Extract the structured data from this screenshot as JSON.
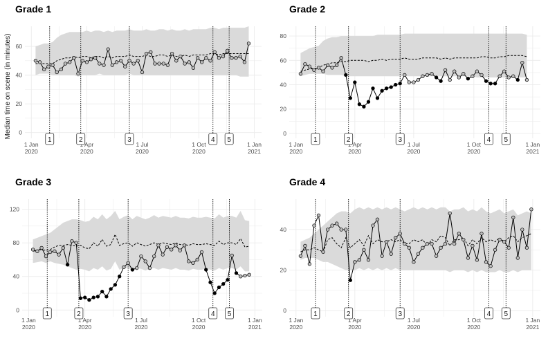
{
  "ylabel": "Median time on scene (in minutes)",
  "colors": {
    "band": "#dadada",
    "grid": "#ebebeb",
    "observed_line": "#000000",
    "expected_line": "#000000",
    "open_point_fill": "#bdbdbd",
    "below_point_fill": "#000000",
    "event_line": "#000000"
  },
  "x_ticks": [
    {
      "week": 0,
      "label_line1": "1 Jan",
      "label_line2": "2020"
    },
    {
      "week": 13,
      "label_line1": "1 Apr",
      "label_line2": "2020"
    },
    {
      "week": 26,
      "label_line1": "1 Jul",
      "label_line2": "2020"
    },
    {
      "week": 39.3,
      "label_line1": "1 Oct",
      "label_line2": "2020"
    },
    {
      "week": 52.3,
      "label_line1": "1 Jan",
      "label_line2": "2021"
    }
  ],
  "events": [
    {
      "label": "1",
      "week": 4.3
    },
    {
      "label": "2",
      "week": 11.6
    },
    {
      "label": "3",
      "week": 23
    },
    {
      "label": "4",
      "week": 42.6
    },
    {
      "label": "5",
      "week": 46.4
    }
  ],
  "chart_data": [
    {
      "type": "line",
      "title": "Grade 1",
      "ylim": [
        -4,
        74
      ],
      "y_ticks": [
        0,
        20,
        40,
        60
      ],
      "x_start": 1,
      "series": [
        {
          "name": "observed",
          "values": [
            50,
            49,
            44,
            46,
            47,
            42,
            44,
            48,
            49,
            52,
            41,
            50,
            49,
            51,
            52,
            48,
            47,
            58,
            47,
            49,
            50,
            46,
            50,
            48,
            50,
            42,
            55,
            56,
            48,
            48,
            48,
            47,
            55,
            50,
            53,
            48,
            49,
            45,
            52,
            49,
            52,
            50,
            56,
            52,
            53,
            57,
            52,
            52,
            53,
            49,
            62
          ]
        },
        {
          "name": "expected",
          "values": [
            48,
            48,
            48,
            48,
            48,
            50,
            51,
            52,
            52,
            53,
            52,
            53,
            53,
            52,
            53,
            53,
            52,
            53,
            52,
            53,
            53,
            53,
            54,
            53,
            53,
            53,
            54,
            53,
            53,
            54,
            54,
            53,
            54,
            53,
            53,
            54,
            53,
            54,
            54,
            54,
            54,
            55,
            55,
            54,
            55,
            55,
            55,
            55,
            55,
            55,
            55
          ]
        },
        {
          "name": "upper",
          "values": [
            60,
            61,
            62,
            62,
            63,
            66,
            68,
            69,
            70,
            70,
            70,
            70,
            71,
            70,
            71,
            71,
            70,
            71,
            70,
            71,
            71,
            71,
            72,
            71,
            71,
            71,
            72,
            71,
            71,
            72,
            72,
            71,
            72,
            71,
            71,
            72,
            71,
            72,
            72,
            72,
            72,
            73,
            73,
            72,
            73,
            73,
            73,
            73,
            73,
            73,
            74
          ]
        },
        {
          "name": "lower",
          "values": [
            40,
            41,
            41,
            41,
            40,
            40,
            40,
            40,
            40,
            40,
            39,
            40,
            40,
            40,
            40,
            41,
            40,
            40,
            40,
            40,
            40,
            40,
            41,
            40,
            40,
            40,
            40,
            40,
            40,
            40,
            40,
            40,
            40,
            40,
            40,
            40,
            40,
            40,
            40,
            40,
            40,
            40,
            40,
            40,
            40,
            40,
            40,
            40,
            39,
            39,
            39
          ]
        }
      ],
      "below_flags": [
        0,
        0,
        0,
        0,
        0,
        0,
        0,
        0,
        0,
        0,
        0,
        0,
        0,
        0,
        0,
        0,
        0,
        0,
        0,
        0,
        0,
        0,
        0,
        0,
        0,
        0,
        0,
        0,
        0,
        0,
        0,
        0,
        0,
        0,
        0,
        0,
        0,
        0,
        0,
        0,
        0,
        0,
        0,
        0,
        0,
        0,
        0,
        0,
        0,
        0,
        0
      ]
    },
    {
      "type": "line",
      "title": "Grade 2",
      "ylim": [
        -4,
        88
      ],
      "y_ticks": [
        0,
        20,
        40,
        60,
        80
      ],
      "x_start": 1,
      "series": [
        {
          "name": "observed",
          "values": [
            49,
            57,
            55,
            52,
            54,
            51,
            56,
            54,
            56,
            62,
            48,
            29,
            42,
            24,
            22,
            26,
            37,
            29,
            35,
            37,
            38,
            40,
            41,
            48,
            42,
            42,
            44,
            47,
            48,
            49,
            46,
            43,
            52,
            44,
            51,
            46,
            49,
            45,
            47,
            51,
            48,
            43,
            41,
            41,
            47,
            51,
            46,
            47,
            44,
            58,
            44
          ]
        },
        {
          "name": "expected",
          "values": [
            51,
            52,
            53,
            53,
            54,
            56,
            57,
            58,
            58,
            59,
            59,
            60,
            60,
            60,
            60,
            59,
            60,
            60,
            61,
            60,
            61,
            61,
            61,
            62,
            61,
            61,
            61,
            62,
            62,
            62,
            62,
            61,
            62,
            61,
            62,
            62,
            62,
            62,
            62,
            62,
            63,
            63,
            62,
            62,
            63,
            63,
            64,
            64,
            64,
            64,
            63
          ]
        },
        {
          "name": "upper",
          "values": [
            66,
            68,
            70,
            71,
            72,
            76,
            78,
            79,
            79,
            80,
            80,
            80,
            80,
            80,
            80,
            80,
            80,
            81,
            81,
            81,
            81,
            81,
            81,
            82,
            82,
            82,
            82,
            82,
            82,
            82,
            82,
            82,
            82,
            82,
            82,
            82,
            82,
            82,
            82,
            82,
            82,
            82,
            82,
            82,
            82,
            82,
            82,
            82,
            82,
            82,
            81
          ]
        },
        {
          "name": "lower",
          "values": [
            47,
            48,
            49,
            49,
            49,
            49,
            48,
            48,
            48,
            48,
            47,
            47,
            47,
            47,
            47,
            47,
            47,
            47,
            47,
            47,
            47,
            47,
            47,
            47,
            47,
            47,
            47,
            47,
            47,
            47,
            47,
            47,
            47,
            47,
            47,
            47,
            47,
            47,
            47,
            46,
            46,
            46,
            46,
            46,
            46,
            46,
            46,
            46,
            46,
            46,
            46
          ]
        }
      ],
      "below_flags": [
        0,
        0,
        0,
        0,
        0,
        0,
        0,
        0,
        0,
        0,
        1,
        1,
        1,
        1,
        1,
        1,
        1,
        1,
        1,
        1,
        1,
        1,
        1,
        0,
        0,
        0,
        0,
        0,
        0,
        0,
        1,
        1,
        0,
        0,
        0,
        0,
        0,
        1,
        0,
        0,
        0,
        1,
        1,
        1,
        0,
        0,
        0,
        0,
        1,
        0,
        0
      ]
    },
    {
      "type": "line",
      "title": "Grade 3",
      "ylim": [
        -8,
        132
      ],
      "y_ticks": [
        0,
        40,
        80,
        120
      ],
      "x_start": 1,
      "series": [
        {
          "name": "observed",
          "values": [
            72,
            70,
            74,
            64,
            69,
            70,
            66,
            74,
            54,
            82,
            80,
            14,
            15,
            12,
            15,
            16,
            22,
            16,
            25,
            30,
            40,
            51,
            56,
            48,
            50,
            64,
            58,
            50,
            64,
            77,
            66,
            75,
            72,
            77,
            71,
            77,
            58,
            56,
            60,
            69,
            48,
            33,
            20,
            27,
            31,
            36,
            65,
            44,
            40,
            41,
            42
          ]
        },
        {
          "name": "expected",
          "values": [
            70,
            71,
            72,
            71,
            72,
            75,
            77,
            77,
            78,
            77,
            76,
            77,
            74,
            73,
            80,
            76,
            84,
            76,
            78,
            90,
            77,
            79,
            80,
            76,
            80,
            78,
            76,
            78,
            80,
            78,
            80,
            79,
            78,
            80,
            78,
            78,
            77,
            79,
            78,
            78,
            79,
            78,
            77,
            82,
            78,
            80,
            80,
            78,
            85,
            75,
            76
          ]
        },
        {
          "name": "upper",
          "values": [
            84,
            86,
            88,
            90,
            92,
            96,
            100,
            104,
            106,
            108,
            108,
            107,
            105,
            106,
            111,
            108,
            114,
            108,
            112,
            118,
            108,
            111,
            113,
            108,
            112,
            110,
            108,
            110,
            113,
            110,
            112,
            111,
            110,
            112,
            110,
            110,
            109,
            111,
            110,
            110,
            111,
            110,
            109,
            114,
            110,
            112,
            112,
            110,
            118,
            107,
            106
          ]
        },
        {
          "name": "lower",
          "values": [
            56,
            57,
            58,
            56,
            58,
            56,
            55,
            54,
            52,
            50,
            48,
            49,
            48,
            46,
            50,
            48,
            52,
            47,
            49,
            58,
            48,
            50,
            50,
            47,
            50,
            49,
            47,
            49,
            50,
            48,
            50,
            49,
            48,
            50,
            48,
            48,
            47,
            49,
            48,
            48,
            49,
            48,
            47,
            50,
            48,
            50,
            50,
            48,
            52,
            46,
            46
          ]
        }
      ],
      "below_flags": [
        0,
        0,
        0,
        0,
        0,
        0,
        0,
        0,
        1,
        0,
        0,
        1,
        1,
        1,
        1,
        1,
        1,
        1,
        1,
        1,
        1,
        0,
        0,
        1,
        0,
        0,
        0,
        0,
        0,
        0,
        0,
        0,
        0,
        0,
        0,
        0,
        0,
        0,
        0,
        0,
        1,
        1,
        1,
        1,
        1,
        1,
        0,
        1,
        0,
        0,
        0
      ]
    },
    {
      "type": "line",
      "title": "Grade 4",
      "ylim": [
        -3,
        55
      ],
      "y_ticks": [
        0,
        20,
        40
      ],
      "x_start": 1,
      "series": [
        {
          "name": "observed",
          "values": [
            27,
            32,
            23,
            42,
            47,
            29,
            40,
            42,
            43,
            40,
            40,
            15,
            24,
            25,
            30,
            25,
            42,
            45,
            27,
            34,
            28,
            36,
            38,
            33,
            31,
            24,
            28,
            31,
            33,
            33,
            27,
            31,
            33,
            48,
            33,
            38,
            35,
            26,
            32,
            25,
            38,
            24,
            22,
            30,
            35,
            34,
            31,
            46,
            26,
            40,
            31,
            50
          ]
        },
        {
          "name": "expected",
          "values": [
            29,
            30,
            30,
            31,
            30,
            29,
            35,
            36,
            33,
            31,
            36,
            31,
            33,
            35,
            32,
            37,
            33,
            35,
            34,
            34,
            35,
            34,
            35,
            33,
            33,
            35,
            34,
            35,
            32,
            35,
            34,
            37,
            36,
            32,
            35,
            35,
            36,
            32,
            35,
            33,
            36,
            34,
            35,
            34,
            36,
            34,
            36,
            37,
            34,
            36,
            37,
            38
          ]
        },
        {
          "name": "upper",
          "values": [
            34,
            35,
            36,
            38,
            40,
            42,
            44,
            46,
            48,
            49,
            49,
            48,
            50,
            51,
            50,
            51,
            50,
            51,
            50,
            51,
            50,
            51,
            50,
            49,
            50,
            51,
            50,
            51,
            50,
            51,
            50,
            51,
            51,
            49,
            50,
            50,
            51,
            49,
            50,
            49,
            51,
            49,
            48,
            49,
            50,
            48,
            49,
            50,
            47,
            48,
            49,
            48
          ]
        },
        {
          "name": "lower",
          "values": [
            25,
            26,
            26,
            26,
            25,
            24,
            24,
            23,
            22,
            21,
            20,
            20,
            20,
            21,
            20,
            21,
            20,
            21,
            20,
            21,
            20,
            21,
            20,
            20,
            20,
            20,
            20,
            20,
            20,
            20,
            20,
            20,
            20,
            19,
            20,
            20,
            20,
            19,
            20,
            19,
            20,
            19,
            19,
            19,
            20,
            19,
            19,
            20,
            19,
            20,
            20,
            20
          ]
        }
      ],
      "below_flags": [
        0,
        0,
        0,
        0,
        0,
        0,
        0,
        0,
        0,
        0,
        0,
        1,
        0,
        0,
        0,
        0,
        0,
        0,
        0,
        0,
        0,
        0,
        0,
        0,
        0,
        0,
        0,
        0,
        0,
        0,
        0,
        0,
        0,
        0,
        0,
        0,
        0,
        0,
        0,
        0,
        0,
        0,
        0,
        0,
        0,
        0,
        0,
        0,
        0,
        0,
        0,
        0
      ]
    }
  ]
}
